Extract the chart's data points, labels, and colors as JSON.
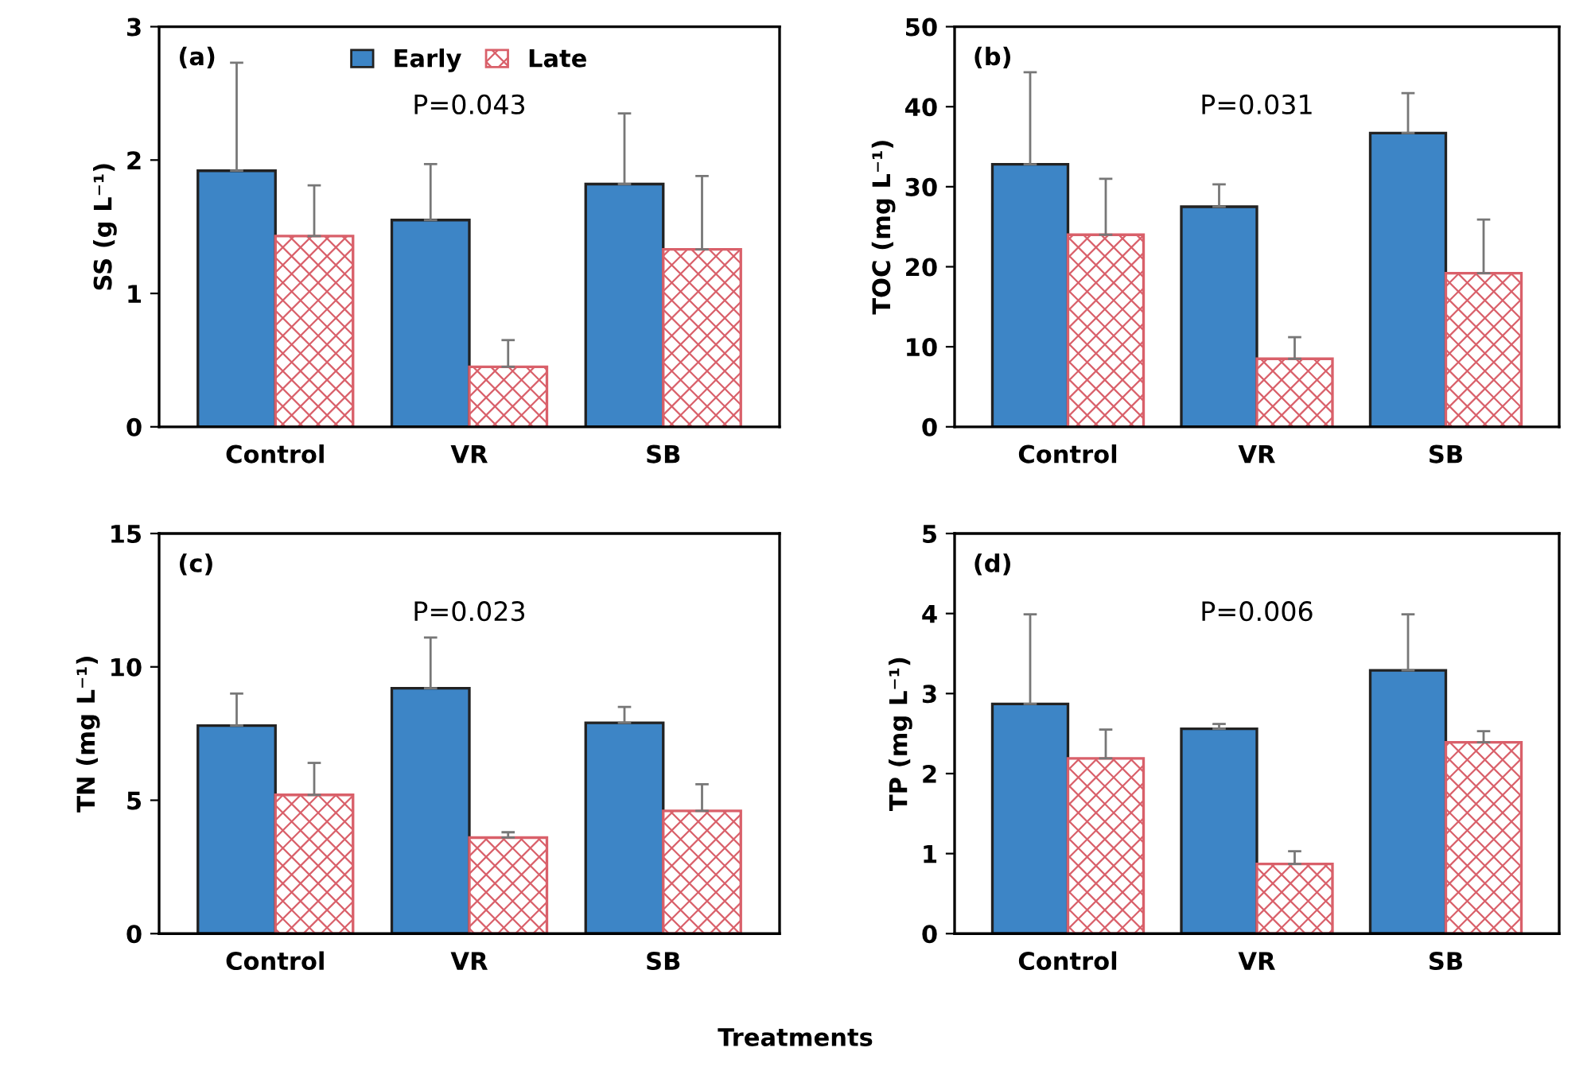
{
  "chart_data": [
    {
      "type": "bar",
      "title": "(a)",
      "ylabel": "SS (g L⁻¹)",
      "categories": [
        "Control",
        "VR",
        "SB"
      ],
      "ylim": [
        0,
        3
      ],
      "yticks": [
        0,
        1,
        2,
        3
      ],
      "legend": "top",
      "grid": false,
      "annotations": [
        "P=0.043"
      ],
      "series": [
        {
          "name": "Early",
          "color": "#3d85c6",
          "values": [
            1.92,
            1.55,
            1.82
          ],
          "errors": [
            [
              1.92,
              2.73
            ],
            [
              1.55,
              1.97
            ],
            [
              1.82,
              2.35
            ]
          ]
        },
        {
          "name": "Late",
          "color": "#d9606a",
          "values": [
            1.43,
            0.45,
            1.33
          ],
          "errors": [
            [
              1.43,
              1.81
            ],
            [
              0.45,
              0.65
            ],
            [
              1.33,
              1.88
            ]
          ]
        }
      ]
    },
    {
      "type": "bar",
      "title": "(b)",
      "ylabel": "TOC (mg L⁻¹)",
      "categories": [
        "Control",
        "VR",
        "SB"
      ],
      "ylim": [
        0,
        50
      ],
      "yticks": [
        0,
        10,
        20,
        30,
        40,
        50
      ],
      "grid": false,
      "annotations": [
        "P=0.031"
      ],
      "series": [
        {
          "color": "#3d85c6",
          "values": [
            32.8,
            27.5,
            36.7
          ],
          "errors": [
            [
              32.8,
              44.3
            ],
            [
              27.5,
              30.3
            ],
            [
              36.7,
              41.7
            ]
          ]
        },
        {
          "color": "#d9606a",
          "values": [
            24,
            8.5,
            19.2
          ],
          "errors": [
            [
              24,
              31
            ],
            [
              8.5,
              11.2
            ],
            [
              19.2,
              25.9
            ]
          ]
        }
      ]
    },
    {
      "type": "bar",
      "title": "(c)",
      "ylabel": "TN (mg L⁻¹)",
      "categories": [
        "Control",
        "VR",
        "SB"
      ],
      "ylim": [
        0,
        15
      ],
      "yticks": [
        0,
        5,
        10,
        15
      ],
      "grid": false,
      "annotations": [
        "P=0.023"
      ],
      "series": [
        {
          "color": "#3d85c6",
          "values": [
            7.8,
            9.2,
            7.9
          ],
          "errors": [
            [
              7.8,
              9.0
            ],
            [
              9.2,
              11.1
            ],
            [
              7.9,
              8.5
            ]
          ]
        },
        {
          "color": "#d9606a",
          "values": [
            5.2,
            3.6,
            4.6
          ],
          "errors": [
            [
              5.2,
              6.4
            ],
            [
              3.6,
              3.8
            ],
            [
              4.6,
              5.6
            ]
          ]
        }
      ]
    },
    {
      "type": "bar",
      "title": "(d)",
      "ylabel": "TP (mg L⁻¹)",
      "xlabel": "Treatments",
      "categories": [
        "Control",
        "VR",
        "SB"
      ],
      "ylim": [
        0,
        5
      ],
      "yticks": [
        0,
        1,
        2,
        3,
        4,
        5
      ],
      "grid": false,
      "annotations": [
        "P=0.006"
      ],
      "series": [
        {
          "color": "#3d85c6",
          "values": [
            2.87,
            2.56,
            3.29
          ],
          "errors": [
            [
              2.87,
              3.99
            ],
            [
              2.56,
              2.62
            ],
            [
              3.29,
              3.99
            ]
          ]
        },
        {
          "color": "#d9606a",
          "values": [
            2.19,
            0.87,
            2.39
          ],
          "errors": [
            [
              2.19,
              2.55
            ],
            [
              0.87,
              1.03
            ],
            [
              2.39,
              2.53
            ]
          ]
        }
      ]
    }
  ]
}
